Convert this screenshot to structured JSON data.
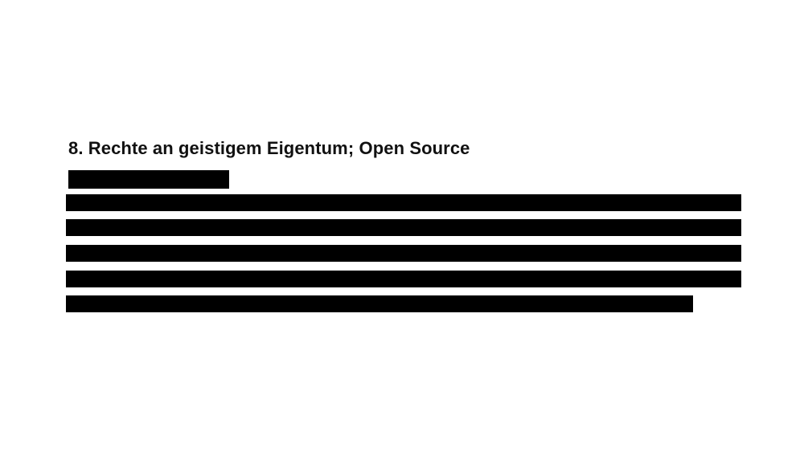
{
  "document": {
    "section_heading": "8. Rechte an geistigem Eigentum; Open Source",
    "redacted_lines": 6
  }
}
